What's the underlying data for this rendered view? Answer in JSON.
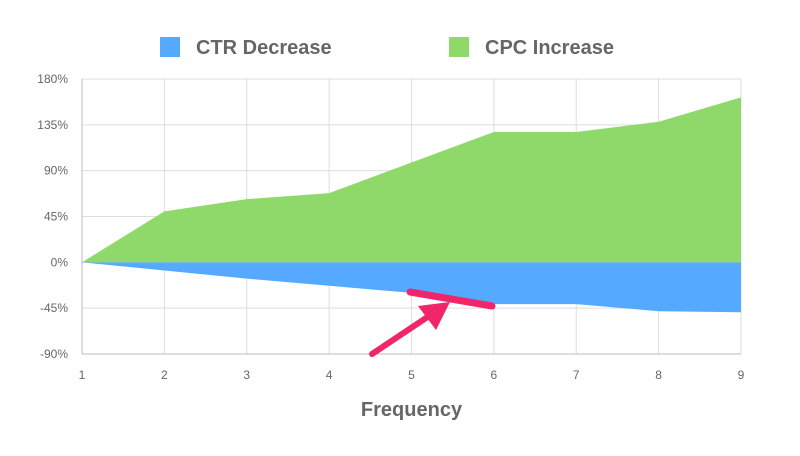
{
  "chart_data": {
    "type": "area",
    "xlabel": "Frequency",
    "ylabel": "",
    "title": "",
    "x": [
      1,
      2,
      3,
      4,
      5,
      6,
      7,
      8,
      9
    ],
    "xlim": [
      1,
      9
    ],
    "ylim": [
      -90,
      180
    ],
    "yticks": [
      -90,
      -45,
      0,
      45,
      90,
      135,
      180
    ],
    "y_tick_suffix": "%",
    "grid": true,
    "legend_position": "top",
    "series": [
      {
        "name": "CTR Decrease",
        "color": "#55aaff",
        "values": [
          0,
          -8,
          -16,
          -23,
          -30,
          -41,
          -41,
          -48,
          -49
        ]
      },
      {
        "name": "CPC Increase",
        "color": "#8fd96a",
        "values": [
          0,
          50,
          62,
          68,
          98,
          128,
          128,
          138,
          162
        ]
      }
    ],
    "annotation": {
      "type": "highlight-arrow",
      "color": "#f0256a"
    }
  }
}
